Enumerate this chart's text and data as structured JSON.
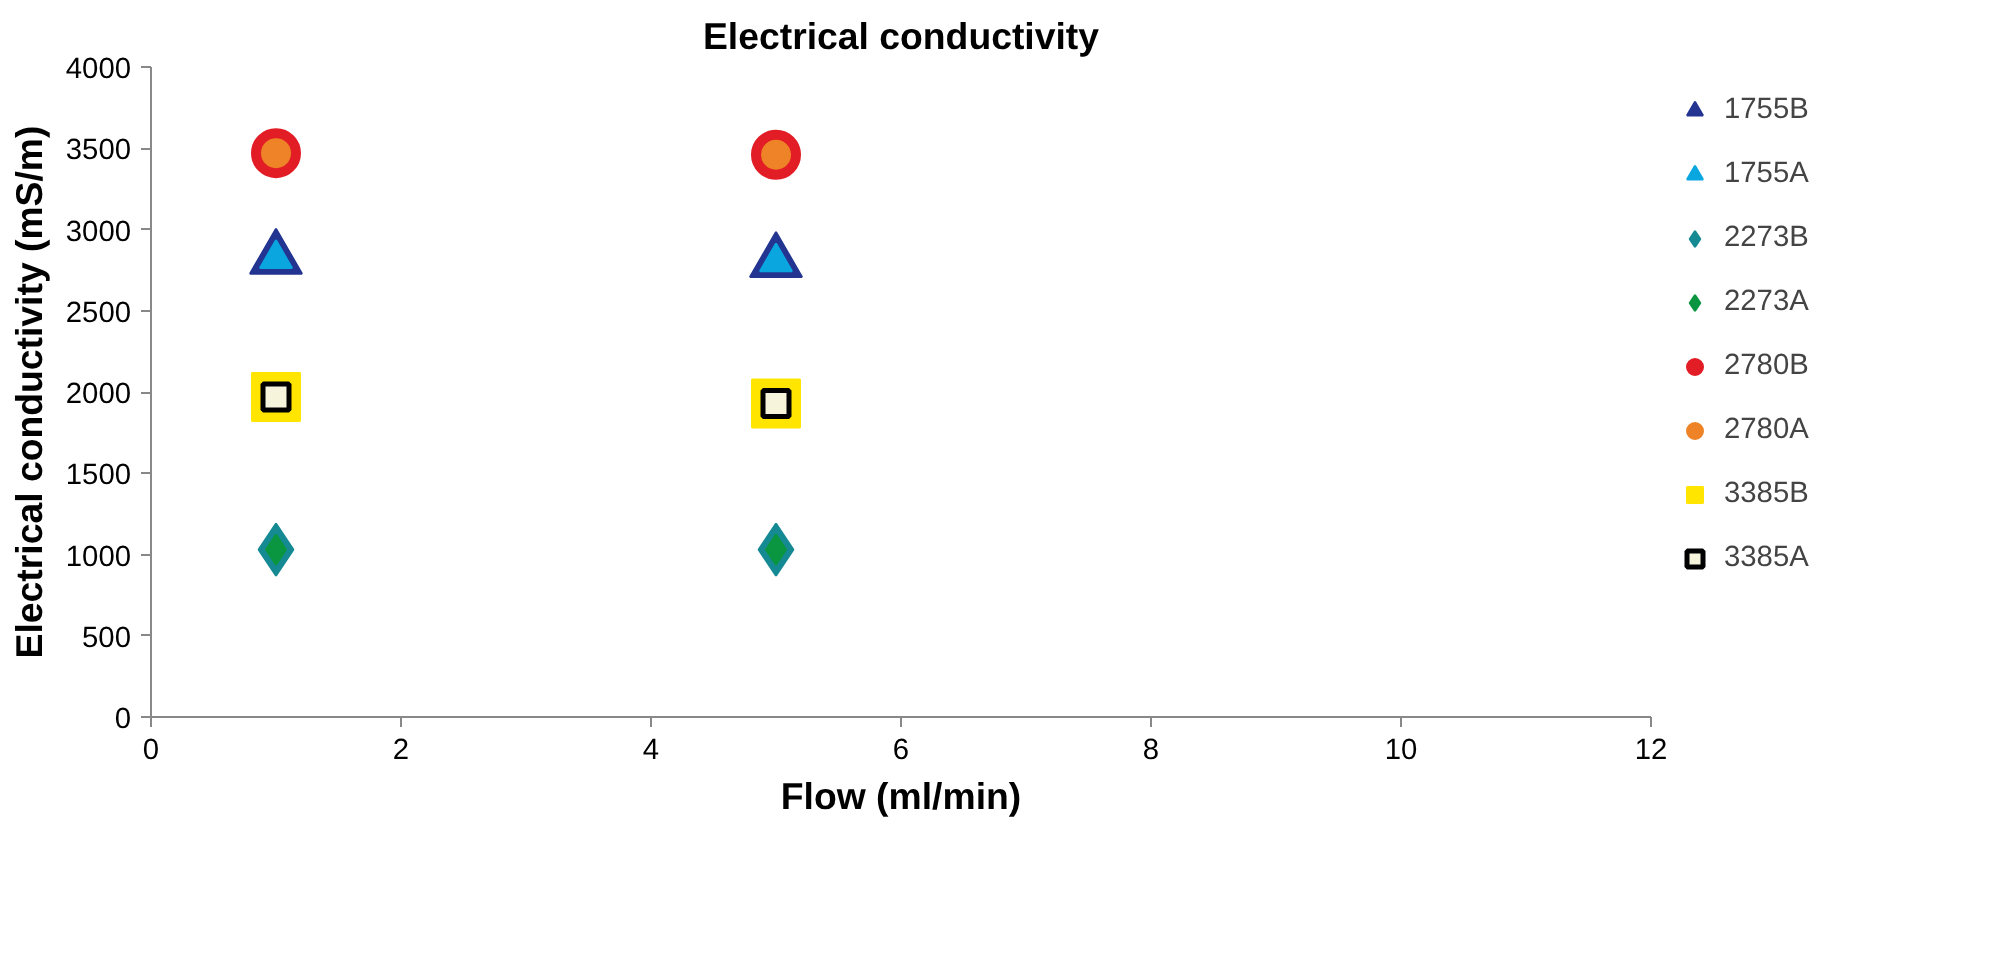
{
  "chart_data": {
    "type": "scatter",
    "title": "Electrical conductivity",
    "xlabel": "Flow (ml/min)",
    "ylabel": "Electrical conductivity (mS/m)",
    "xlim": [
      0,
      12
    ],
    "xticks": [
      0,
      2,
      4,
      6,
      8,
      10,
      12
    ],
    "ylim": [
      0,
      4000
    ],
    "yticks": [
      0,
      500,
      1000,
      1500,
      2000,
      2500,
      3000,
      3500,
      4000
    ],
    "grid": false,
    "legend": "right",
    "x": [
      1,
      5
    ],
    "series": [
      {
        "name": "1755B",
        "color": "#233591",
        "marker": "triangle",
        "values": [
          2820,
          2800
        ]
      },
      {
        "name": "1755A",
        "color": "#0aa6e0",
        "marker": "triangle",
        "values": [
          2820,
          2800
        ]
      },
      {
        "name": "2273B",
        "color": "#158a93",
        "marker": "diamond",
        "values": [
          1030,
          1030
        ]
      },
      {
        "name": "2273A",
        "color": "#0a9640",
        "marker": "diamond",
        "values": [
          1030,
          1030
        ]
      },
      {
        "name": "2780B",
        "color": "#e21d26",
        "marker": "circle",
        "values": [
          3470,
          3460
        ]
      },
      {
        "name": "2780A",
        "color": "#ee8327",
        "marker": "circle",
        "values": [
          3470,
          3460
        ]
      },
      {
        "name": "3385B",
        "color": "#ffe500",
        "marker": "square",
        "values": [
          1970,
          1930
        ]
      },
      {
        "name": "3385A",
        "color": "#f7f4dc",
        "marker": "square",
        "values": [
          1970,
          1930
        ]
      }
    ]
  }
}
